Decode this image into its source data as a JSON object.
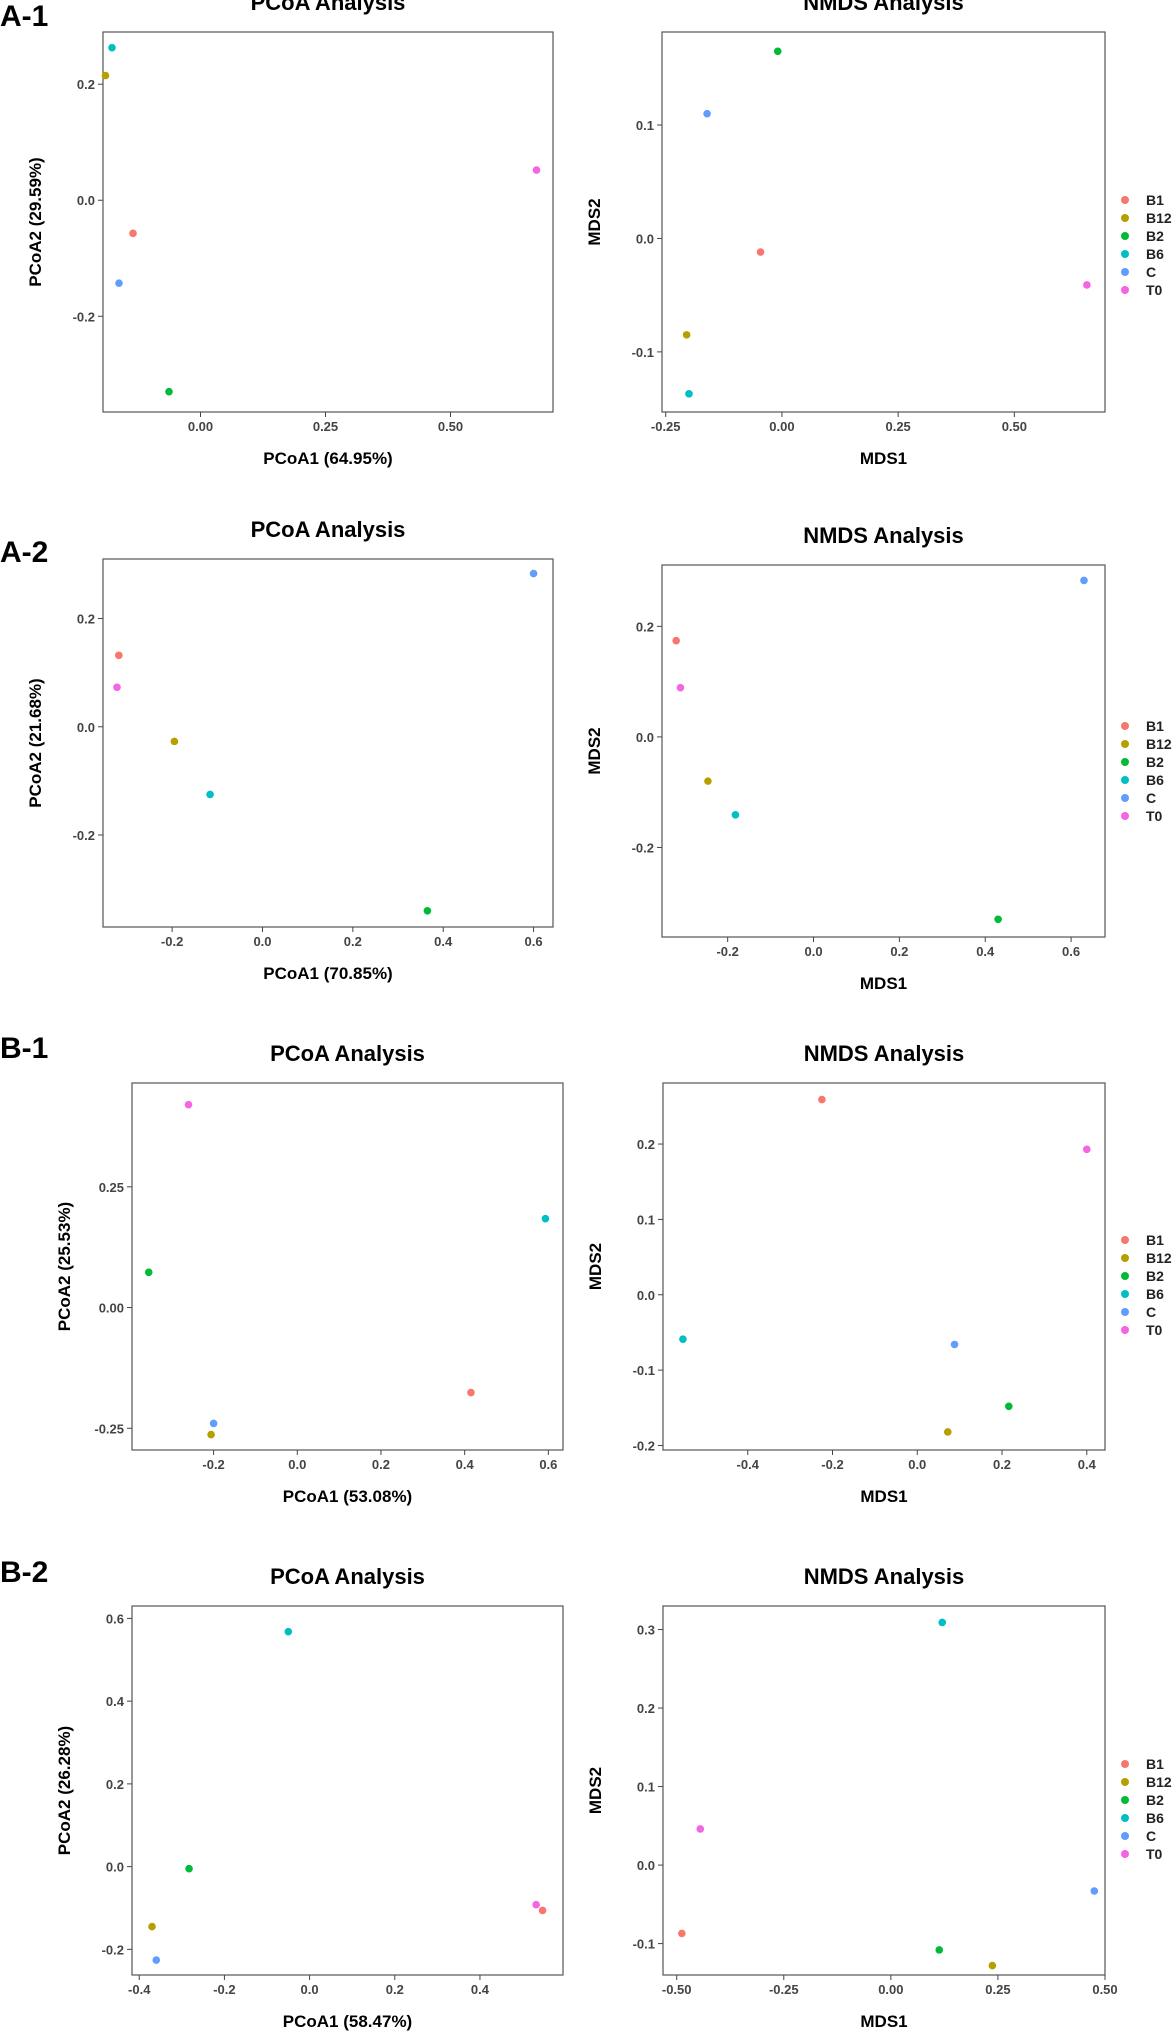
{
  "section_labels": [
    "A-1",
    "A-2",
    "B-1",
    "B-2"
  ],
  "legend": {
    "items": [
      {
        "name": "B1",
        "color": "#F8766D"
      },
      {
        "name": "B12",
        "color": "#B79F00"
      },
      {
        "name": "B2",
        "color": "#00BA38"
      },
      {
        "name": "B6",
        "color": "#00BFC4"
      },
      {
        "name": "C",
        "color": "#619CFF"
      },
      {
        "name": "T0",
        "color": "#F564E3"
      }
    ]
  },
  "chart_data": [
    {
      "id": "a1-pcoa",
      "section": "A-1",
      "type": "scatter",
      "title": "PCoA Analysis",
      "xlabel": "PCoA1 (64.95%)",
      "ylabel": "PCoA2 (29.59%)",
      "xlim": [
        -0.195,
        0.705
      ],
      "ylim": [
        -0.365,
        0.29
      ],
      "xticks": [
        {
          "v": 0,
          "label": "0.00"
        },
        {
          "v": 0.25,
          "label": "0.25"
        },
        {
          "v": 0.5,
          "label": "0.50"
        }
      ],
      "yticks": [
        {
          "v": -0.2,
          "label": "-0.2"
        },
        {
          "v": 0,
          "label": "0.0"
        },
        {
          "v": 0.2,
          "label": "0.2"
        }
      ],
      "points": [
        {
          "group": "B1",
          "x": -0.135,
          "y": -0.057
        },
        {
          "group": "B12",
          "x": -0.19,
          "y": 0.215
        },
        {
          "group": "B2",
          "x": -0.063,
          "y": -0.33
        },
        {
          "group": "B6",
          "x": -0.177,
          "y": 0.263
        },
        {
          "group": "C",
          "x": -0.163,
          "y": -0.143
        },
        {
          "group": "T0",
          "x": 0.672,
          "y": 0.052
        }
      ]
    },
    {
      "id": "a1-nmds",
      "section": "A-1",
      "type": "scatter",
      "title": "NMDS Analysis",
      "xlabel": "MDS1",
      "ylabel": "MDS2",
      "xlim": [
        -0.258,
        0.695
      ],
      "ylim": [
        -0.153,
        0.182
      ],
      "xticks": [
        {
          "v": -0.25,
          "label": "-0.25"
        },
        {
          "v": 0,
          "label": "0.00"
        },
        {
          "v": 0.25,
          "label": "0.25"
        },
        {
          "v": 0.5,
          "label": "0.50"
        }
      ],
      "yticks": [
        {
          "v": -0.1,
          "label": "-0.1"
        },
        {
          "v": 0,
          "label": "0.0"
        },
        {
          "v": 0.1,
          "label": "0.1"
        }
      ],
      "points": [
        {
          "group": "B1",
          "x": -0.046,
          "y": -0.012
        },
        {
          "group": "B12",
          "x": -0.205,
          "y": -0.085
        },
        {
          "group": "B2",
          "x": -0.009,
          "y": 0.165
        },
        {
          "group": "B6",
          "x": -0.2,
          "y": -0.137
        },
        {
          "group": "C",
          "x": -0.161,
          "y": 0.11
        },
        {
          "group": "T0",
          "x": 0.656,
          "y": -0.041
        }
      ]
    },
    {
      "id": "a2-pcoa",
      "section": "A-2",
      "type": "scatter",
      "title": "PCoA Analysis",
      "xlabel": "PCoA1 (70.85%)",
      "ylabel": "PCoA2 (21.68%)",
      "xlim": [
        -0.353,
        0.643
      ],
      "ylim": [
        -0.37,
        0.31
      ],
      "xticks": [
        {
          "v": -0.2,
          "label": "-0.2"
        },
        {
          "v": 0,
          "label": "0.0"
        },
        {
          "v": 0.2,
          "label": "0.2"
        },
        {
          "v": 0.4,
          "label": "0.4"
        },
        {
          "v": 0.6,
          "label": "0.6"
        }
      ],
      "yticks": [
        {
          "v": -0.2,
          "label": "-0.2"
        },
        {
          "v": 0,
          "label": "0.0"
        },
        {
          "v": 0.2,
          "label": "0.2"
        }
      ],
      "points": [
        {
          "group": "B1",
          "x": -0.318,
          "y": 0.132
        },
        {
          "group": "B12",
          "x": -0.195,
          "y": -0.027
        },
        {
          "group": "B2",
          "x": 0.365,
          "y": -0.34
        },
        {
          "group": "B6",
          "x": -0.116,
          "y": -0.125
        },
        {
          "group": "C",
          "x": 0.6,
          "y": 0.283
        },
        {
          "group": "T0",
          "x": -0.322,
          "y": 0.073
        }
      ]
    },
    {
      "id": "a2-nmds",
      "section": "A-2",
      "type": "scatter",
      "title": "NMDS Analysis",
      "xlabel": "MDS1",
      "ylabel": "MDS2",
      "xlim": [
        -0.353,
        0.679
      ],
      "ylim": [
        -0.362,
        0.311
      ],
      "xticks": [
        {
          "v": -0.2,
          "label": "-0.2"
        },
        {
          "v": 0,
          "label": "0.0"
        },
        {
          "v": 0.2,
          "label": "0.2"
        },
        {
          "v": 0.4,
          "label": "0.4"
        },
        {
          "v": 0.6,
          "label": "0.6"
        }
      ],
      "yticks": [
        {
          "v": -0.2,
          "label": "-0.2"
        },
        {
          "v": 0,
          "label": "0.0"
        },
        {
          "v": 0.2,
          "label": "0.2"
        }
      ],
      "points": [
        {
          "group": "B1",
          "x": -0.32,
          "y": 0.174
        },
        {
          "group": "B12",
          "x": -0.246,
          "y": -0.08
        },
        {
          "group": "B2",
          "x": 0.43,
          "y": -0.33
        },
        {
          "group": "B6",
          "x": -0.182,
          "y": -0.141
        },
        {
          "group": "C",
          "x": 0.63,
          "y": 0.283
        },
        {
          "group": "T0",
          "x": -0.31,
          "y": 0.089
        }
      ]
    },
    {
      "id": "b1-pcoa",
      "section": "B-1",
      "type": "scatter",
      "title": "PCoA Analysis",
      "xlabel": "PCoA1 (53.08%)",
      "ylabel": "PCoA2 (25.53%)",
      "xlim": [
        -0.395,
        0.635
      ],
      "ylim": [
        -0.295,
        0.465
      ],
      "xticks": [
        {
          "v": -0.2,
          "label": "-0.2"
        },
        {
          "v": 0,
          "label": "0.0"
        },
        {
          "v": 0.2,
          "label": "0.2"
        },
        {
          "v": 0.4,
          "label": "0.4"
        },
        {
          "v": 0.6,
          "label": "0.6"
        }
      ],
      "yticks": [
        {
          "v": -0.25,
          "label": "-0.25"
        },
        {
          "v": 0,
          "label": "0.00"
        },
        {
          "v": 0.25,
          "label": "0.25"
        }
      ],
      "points": [
        {
          "group": "B1",
          "x": 0.415,
          "y": -0.176
        },
        {
          "group": "B12",
          "x": -0.206,
          "y": -0.263
        },
        {
          "group": "B2",
          "x": -0.355,
          "y": 0.073
        },
        {
          "group": "B6",
          "x": 0.593,
          "y": 0.184
        },
        {
          "group": "C",
          "x": -0.2,
          "y": -0.24
        },
        {
          "group": "T0",
          "x": -0.26,
          "y": 0.42
        }
      ]
    },
    {
      "id": "b1-nmds",
      "section": "B-1",
      "type": "scatter",
      "title": "NMDS Analysis",
      "xlabel": "MDS1",
      "ylabel": "MDS2",
      "xlim": [
        -0.6,
        0.443
      ],
      "ylim": [
        -0.206,
        0.281
      ],
      "xticks": [
        {
          "v": -0.4,
          "label": "-0.4"
        },
        {
          "v": -0.2,
          "label": "-0.2"
        },
        {
          "v": 0,
          "label": "0.0"
        },
        {
          "v": 0.2,
          "label": "0.2"
        },
        {
          "v": 0.4,
          "label": "0.4"
        }
      ],
      "yticks": [
        {
          "v": -0.2,
          "label": "-0.2"
        },
        {
          "v": -0.1,
          "label": "-0.1"
        },
        {
          "v": 0,
          "label": "0.0"
        },
        {
          "v": 0.1,
          "label": "0.1"
        },
        {
          "v": 0.2,
          "label": "0.2"
        }
      ],
      "points": [
        {
          "group": "B1",
          "x": -0.225,
          "y": 0.259
        },
        {
          "group": "B12",
          "x": 0.072,
          "y": -0.182
        },
        {
          "group": "B2",
          "x": 0.216,
          "y": -0.148
        },
        {
          "group": "B6",
          "x": -0.553,
          "y": -0.059
        },
        {
          "group": "C",
          "x": 0.088,
          "y": -0.066
        },
        {
          "group": "T0",
          "x": 0.4,
          "y": 0.193
        }
      ]
    },
    {
      "id": "b2-pcoa",
      "section": "B-2",
      "type": "scatter",
      "title": "PCoA Analysis",
      "xlabel": "PCoA1 (58.47%)",
      "ylabel": "PCoA2 (26.28%)",
      "xlim": [
        -0.417,
        0.595
      ],
      "ylim": [
        -0.262,
        0.63
      ],
      "xticks": [
        {
          "v": -0.4,
          "label": "-0.4"
        },
        {
          "v": -0.2,
          "label": "-0.2"
        },
        {
          "v": 0,
          "label": "0.0"
        },
        {
          "v": 0.2,
          "label": "0.2"
        },
        {
          "v": 0.4,
          "label": "0.4"
        }
      ],
      "yticks": [
        {
          "v": -0.2,
          "label": "-0.2"
        },
        {
          "v": 0,
          "label": "0.0"
        },
        {
          "v": 0.2,
          "label": "0.2"
        },
        {
          "v": 0.4,
          "label": "0.4"
        },
        {
          "v": 0.6,
          "label": "0.6"
        }
      ],
      "points": [
        {
          "group": "B1",
          "x": 0.547,
          "y": -0.106
        },
        {
          "group": "B12",
          "x": -0.37,
          "y": -0.145
        },
        {
          "group": "B2",
          "x": -0.283,
          "y": -0.005
        },
        {
          "group": "B6",
          "x": -0.05,
          "y": 0.568
        },
        {
          "group": "C",
          "x": -0.36,
          "y": -0.226
        },
        {
          "group": "T0",
          "x": 0.532,
          "y": -0.092
        }
      ]
    },
    {
      "id": "b2-nmds",
      "section": "B-2",
      "type": "scatter",
      "title": "NMDS Analysis",
      "xlabel": "MDS1",
      "ylabel": "MDS2",
      "xlim": [
        -0.532,
        0.5
      ],
      "ylim": [
        -0.14,
        0.33
      ],
      "xticks": [
        {
          "v": -0.5,
          "label": "-0.50"
        },
        {
          "v": -0.25,
          "label": "-0.25"
        },
        {
          "v": 0,
          "label": "0.00"
        },
        {
          "v": 0.25,
          "label": "0.25"
        },
        {
          "v": 0.5,
          "label": "0.50"
        }
      ],
      "yticks": [
        {
          "v": -0.1,
          "label": "-0.1"
        },
        {
          "v": 0,
          "label": "0.0"
        },
        {
          "v": 0.1,
          "label": "0.1"
        },
        {
          "v": 0.2,
          "label": "0.2"
        },
        {
          "v": 0.3,
          "label": "0.3"
        }
      ],
      "points": [
        {
          "group": "B1",
          "x": -0.488,
          "y": -0.087
        },
        {
          "group": "B12",
          "x": 0.237,
          "y": -0.128
        },
        {
          "group": "B2",
          "x": 0.113,
          "y": -0.108
        },
        {
          "group": "B6",
          "x": 0.12,
          "y": 0.309
        },
        {
          "group": "C",
          "x": 0.475,
          "y": -0.033
        },
        {
          "group": "T0",
          "x": -0.445,
          "y": 0.046
        }
      ]
    }
  ]
}
